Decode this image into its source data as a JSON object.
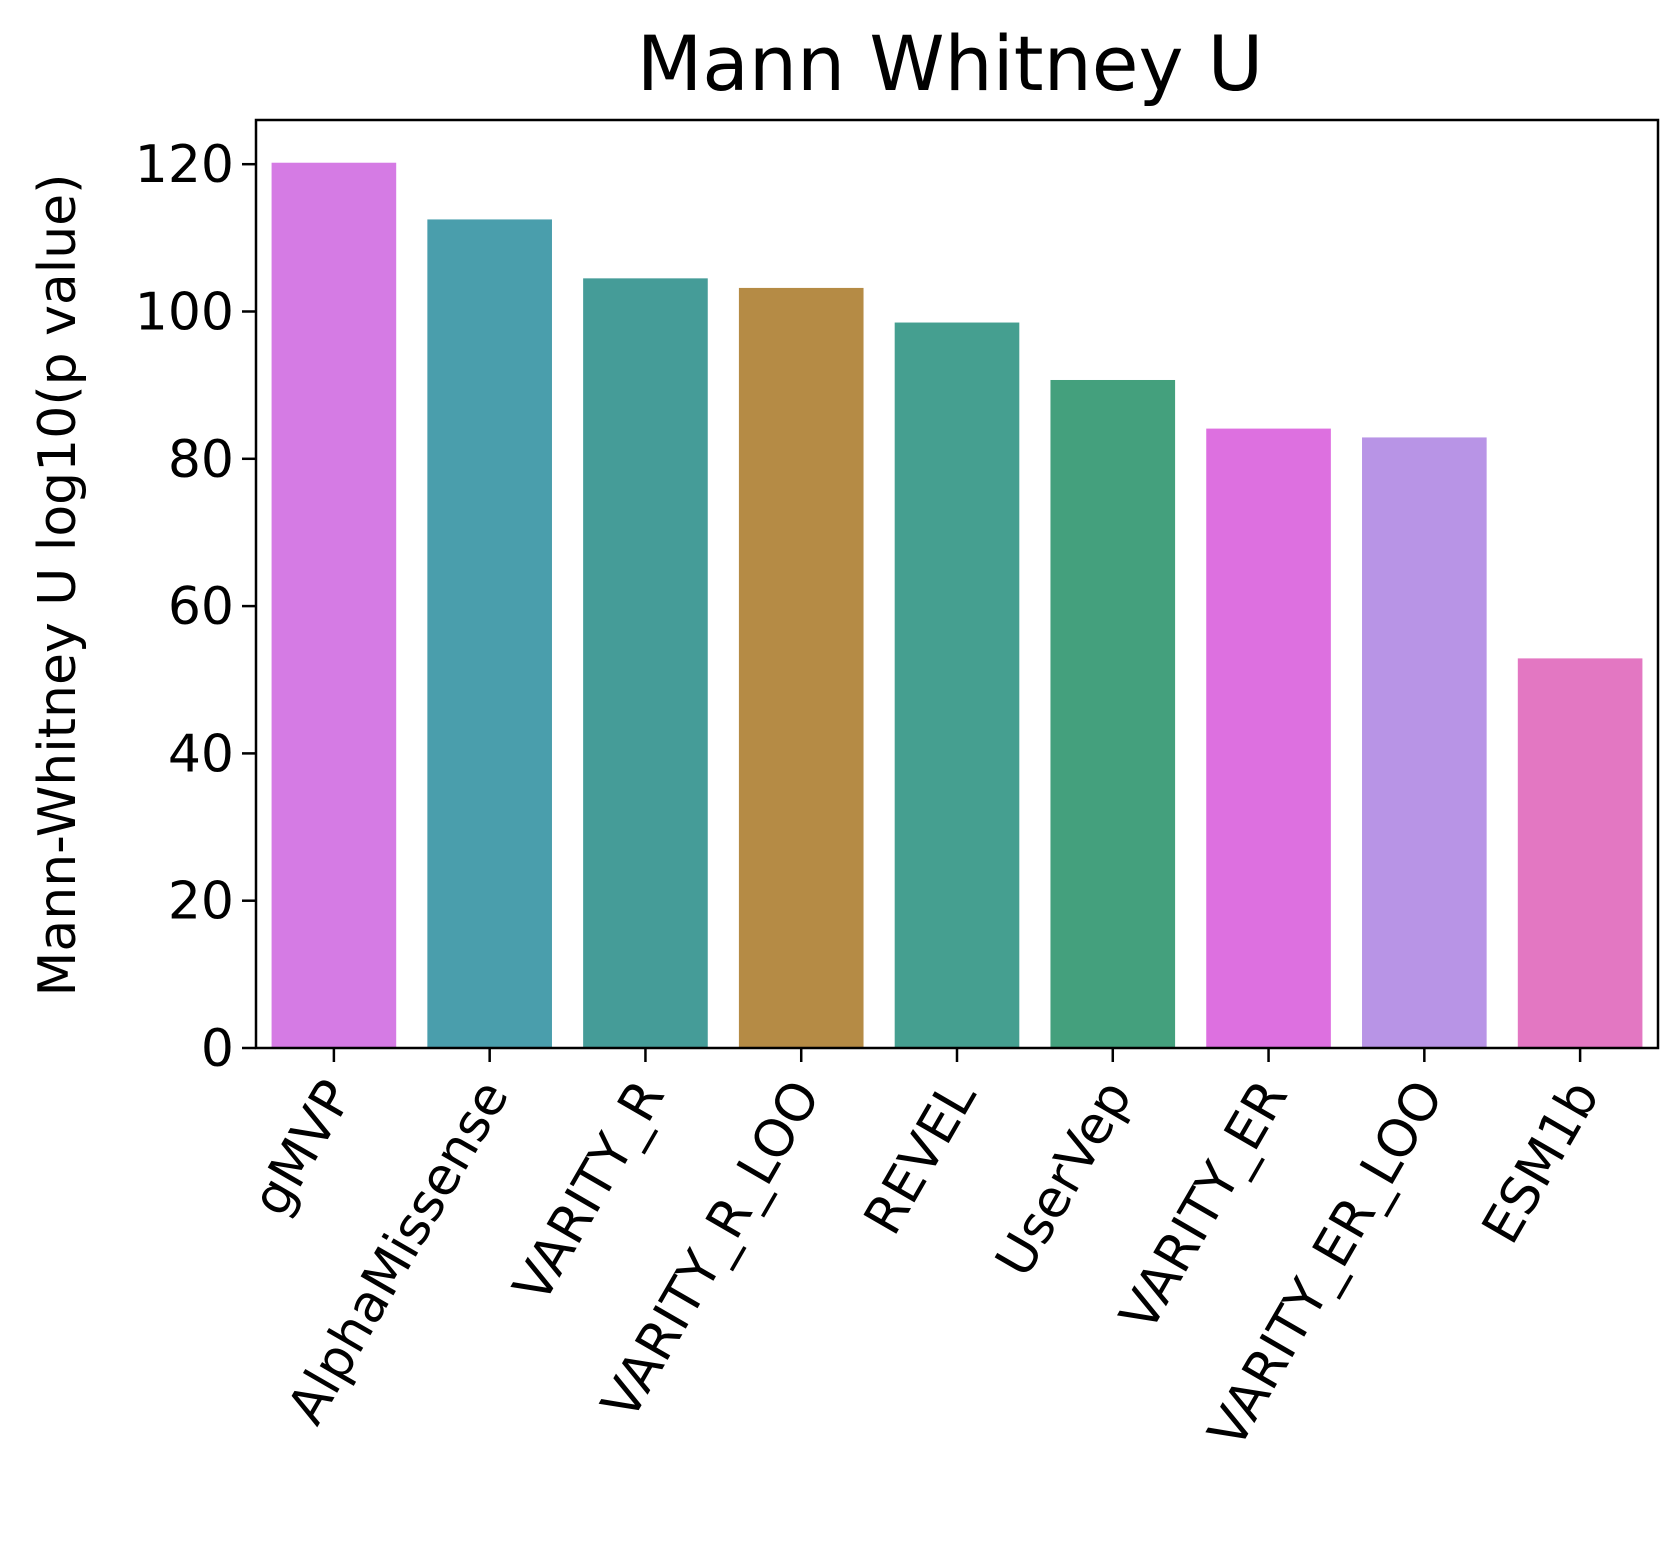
{
  "chart_data": {
    "type": "bar",
    "title": "Mann Whitney U",
    "xlabel": "",
    "ylabel": "Mann-Whitney U log10(p value)",
    "categories": [
      "gMVP",
      "AlphaMissense",
      "VARITY_R",
      "VARITY_R_LOO",
      "REVEL",
      "UserVep",
      "VARITY_ER",
      "VARITY_ER_LOO",
      "ESM1b"
    ],
    "values": [
      120.2,
      112.5,
      104.5,
      103.2,
      98.5,
      90.7,
      84.1,
      82.9,
      52.9
    ],
    "colors": [
      "#d57be4",
      "#4a9eac",
      "#459c98",
      "#b58b45",
      "#459f90",
      "#44a07d",
      "#dd70e0",
      "#b894e6",
      "#e377c2"
    ],
    "ylim": [
      0,
      126
    ],
    "yticks": [
      0,
      20,
      40,
      60,
      80,
      100,
      120
    ],
    "grid": false,
    "legend": "none"
  }
}
